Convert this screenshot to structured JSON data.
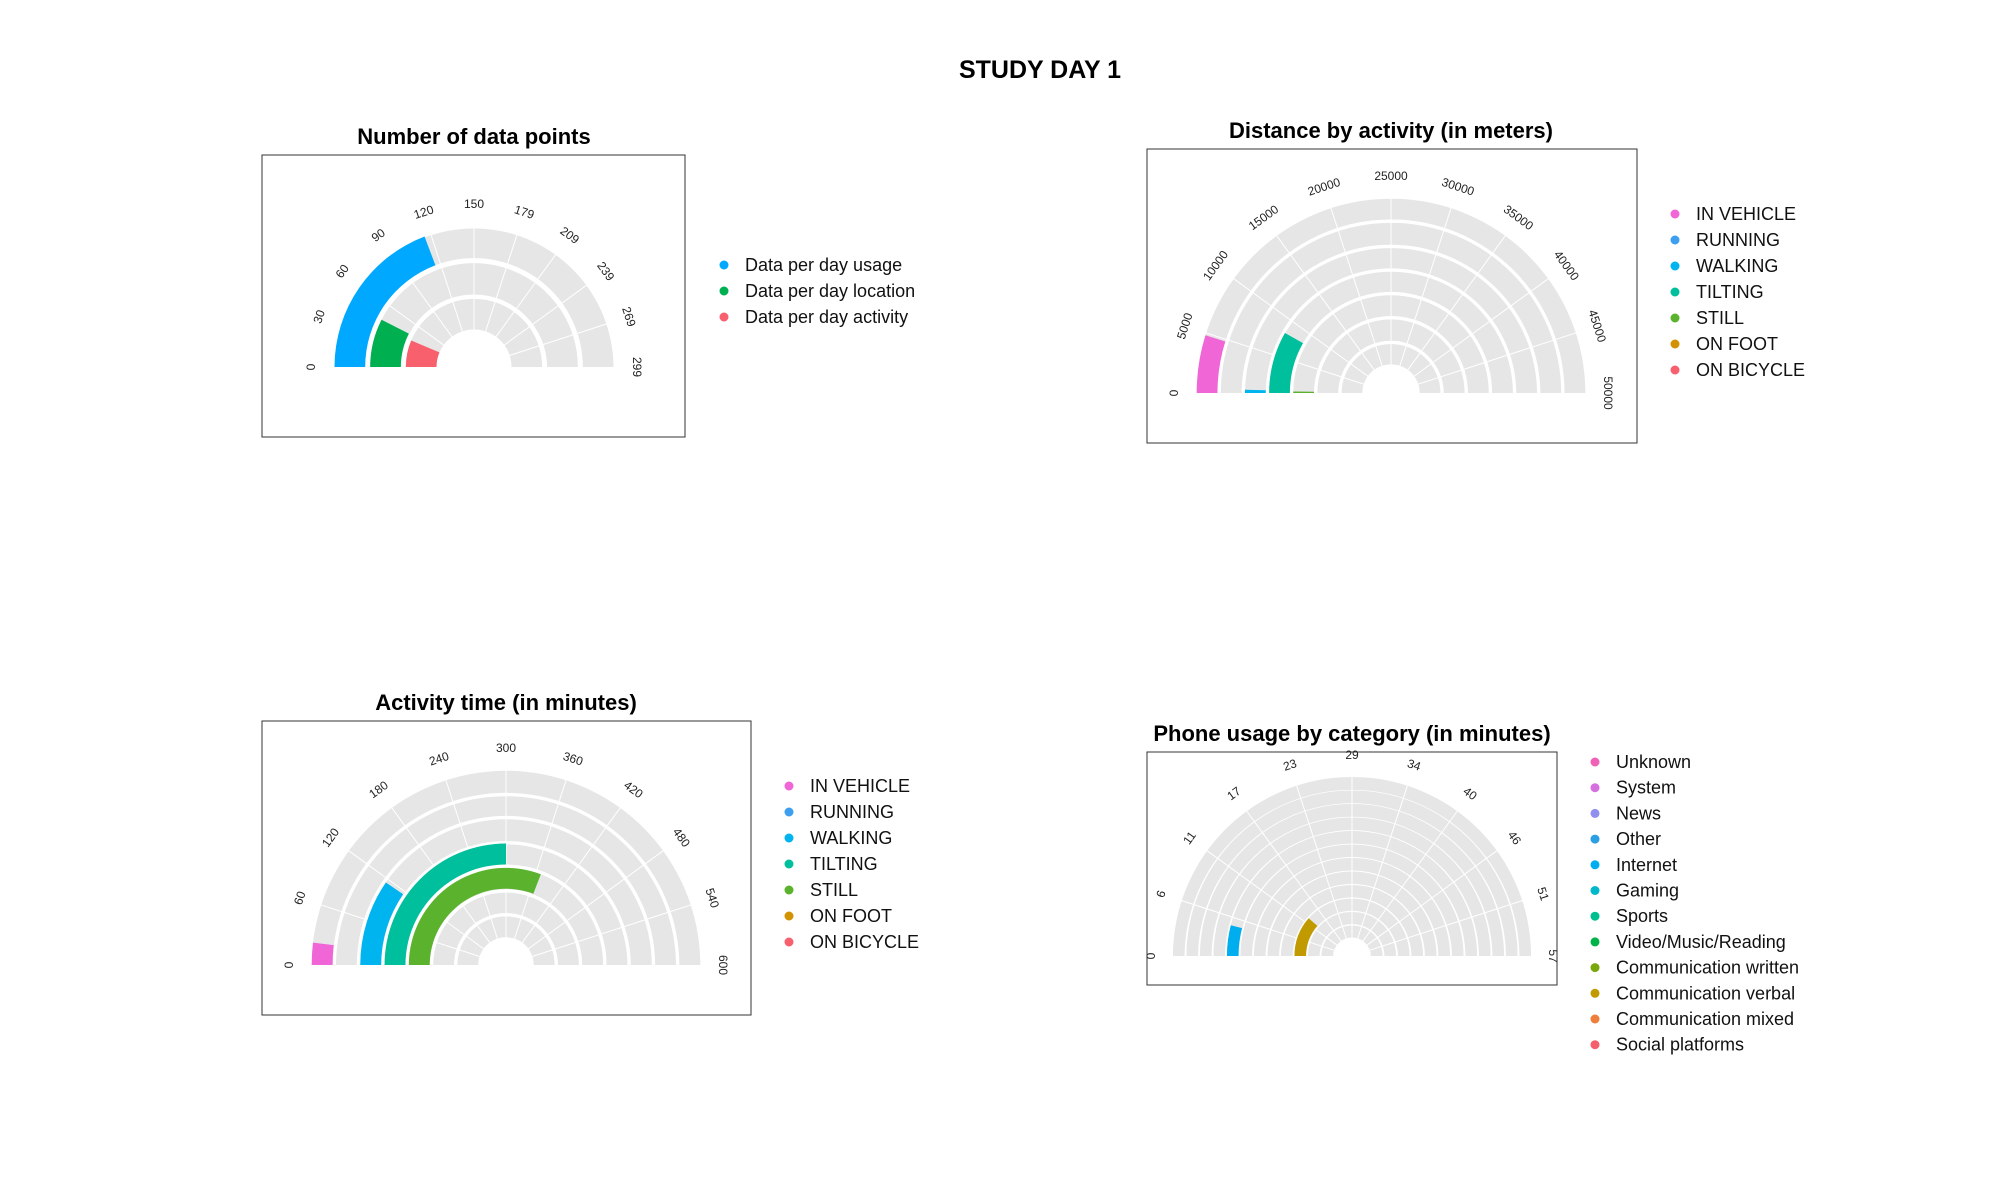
{
  "page": {
    "title": "STUDY DAY 1"
  },
  "chart_data": [
    {
      "id": "datapoints",
      "type": "radial-bar",
      "title": "Number of data points",
      "ticks": [
        "0",
        "30",
        "60",
        "90",
        "120",
        "150",
        "179",
        "209",
        "239",
        "269",
        "299"
      ],
      "ymax": 299,
      "legend_position": "right",
      "series": [
        {
          "name": "Data per day usage",
          "value": 115,
          "color": "#00a9ff"
        },
        {
          "name": "Data per day location",
          "value": 45,
          "color": "#00b050"
        },
        {
          "name": "Data per day activity",
          "value": 38,
          "color": "#f8606e"
        }
      ]
    },
    {
      "id": "distance",
      "type": "radial-bar",
      "title": "Distance by activity (in meters)",
      "ticks": [
        "0",
        "5000",
        "10000",
        "15000",
        "20000",
        "25000",
        "30000",
        "35000",
        "40000",
        "45000",
        "50000"
      ],
      "ymax": 50000,
      "legend_position": "right",
      "series": [
        {
          "name": "IN VEHICLE",
          "value": 4800,
          "color": "#f066d6"
        },
        {
          "name": "RUNNING",
          "value": 0,
          "color": "#3c9ff0"
        },
        {
          "name": "WALKING",
          "value": 350,
          "color": "#00b4ef"
        },
        {
          "name": "TILTING",
          "value": 8200,
          "color": "#00bf9c"
        },
        {
          "name": "STILL",
          "value": 250,
          "color": "#5bb32d"
        },
        {
          "name": "ON FOOT",
          "value": 0,
          "color": "#d39200"
        },
        {
          "name": "ON BICYCLE",
          "value": 0,
          "color": "#f8606e"
        }
      ]
    },
    {
      "id": "activity",
      "type": "radial-bar",
      "title": "Activity time (in minutes)",
      "ticks": [
        "0",
        "60",
        "120",
        "180",
        "240",
        "300",
        "360",
        "420",
        "480",
        "540",
        "600"
      ],
      "ymax": 600,
      "legend_position": "right",
      "series": [
        {
          "name": "IN VEHICLE",
          "value": 22,
          "color": "#f066d6"
        },
        {
          "name": "RUNNING",
          "value": 0,
          "color": "#3c9ff0"
        },
        {
          "name": "WALKING",
          "value": 115,
          "color": "#00b4ef"
        },
        {
          "name": "TILTING",
          "value": 300,
          "color": "#00bf9c"
        },
        {
          "name": "STILL",
          "value": 370,
          "color": "#5bb32d"
        },
        {
          "name": "ON FOOT",
          "value": 0,
          "color": "#d39200"
        },
        {
          "name": "ON BICYCLE",
          "value": 0,
          "color": "#f8606e"
        }
      ]
    },
    {
      "id": "phone",
      "type": "radial-bar",
      "title": "Phone usage by category (in minutes)",
      "ticks": [
        "0",
        "6",
        "11",
        "17",
        "23",
        "29",
        "34",
        "40",
        "46",
        "51",
        "57"
      ],
      "ymax": 57,
      "legend_position": "right",
      "series": [
        {
          "name": "Unknown",
          "value": 0,
          "color": "#f062b8"
        },
        {
          "name": "System",
          "value": 0,
          "color": "#d670e0"
        },
        {
          "name": "News",
          "value": 0,
          "color": "#8f8ff0"
        },
        {
          "name": "Other",
          "value": 0,
          "color": "#2b9fe4"
        },
        {
          "name": "Internet",
          "value": 4.5,
          "color": "#00aef0"
        },
        {
          "name": "Gaming",
          "value": 0,
          "color": "#00b8cc"
        },
        {
          "name": "Sports",
          "value": 0,
          "color": "#00bf8f"
        },
        {
          "name": "Video/Music/Reading",
          "value": 0,
          "color": "#00b348"
        },
        {
          "name": "Communication written",
          "value": 0,
          "color": "#7aa80c"
        },
        {
          "name": "Communication verbal",
          "value": 13,
          "color": "#c19a00"
        },
        {
          "name": "Communication mixed",
          "value": 0,
          "color": "#ee7e3a"
        },
        {
          "name": "Social platforms",
          "value": 0,
          "color": "#f4606c"
        }
      ]
    }
  ]
}
